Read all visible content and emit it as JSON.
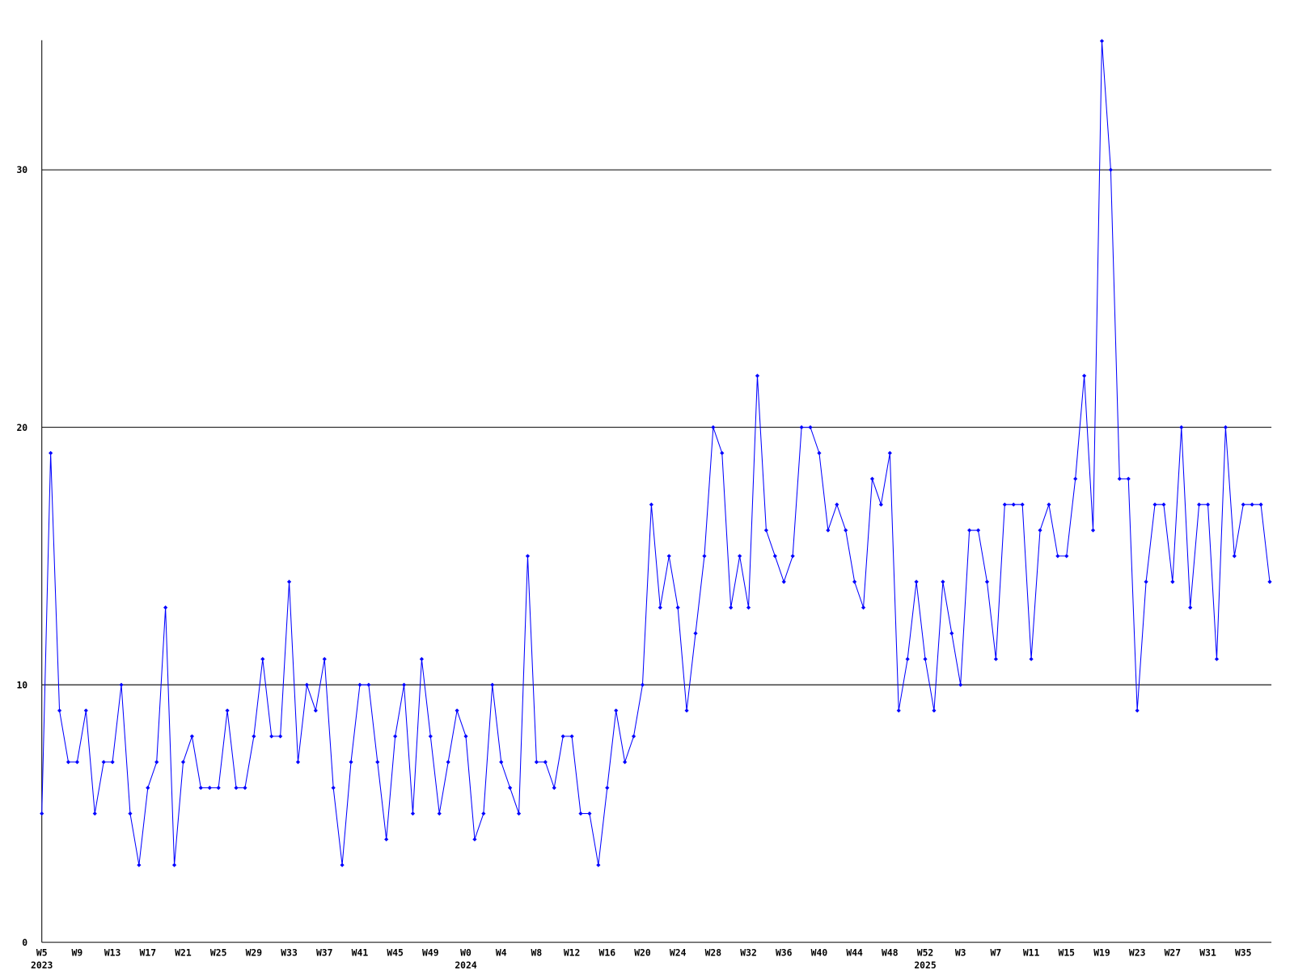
{
  "chart_data": {
    "type": "line",
    "categories": [
      "W5",
      null,
      null,
      null,
      "W9",
      null,
      null,
      null,
      "W13",
      null,
      null,
      null,
      "W17",
      null,
      null,
      null,
      "W21",
      null,
      null,
      null,
      "W25",
      null,
      null,
      null,
      "W29",
      null,
      null,
      null,
      "W33",
      null,
      null,
      null,
      "W37",
      null,
      null,
      null,
      "W41",
      null,
      null,
      null,
      "W45",
      null,
      null,
      null,
      "W49",
      null,
      null,
      null,
      "W0",
      null,
      null,
      null,
      "W4",
      null,
      null,
      null,
      "W8",
      null,
      null,
      null,
      "W12",
      null,
      null,
      null,
      "W16",
      null,
      null,
      null,
      "W20",
      null,
      null,
      null,
      "W24",
      null,
      null,
      null,
      "W28",
      null,
      null,
      null,
      "W32",
      null,
      null,
      null,
      "W36",
      null,
      null,
      null,
      "W40",
      null,
      null,
      null,
      "W44",
      null,
      null,
      null,
      "W48",
      null,
      null,
      null,
      "W52",
      null,
      null,
      null,
      "W3",
      null,
      null,
      null,
      "W7",
      null,
      null,
      null,
      "W11",
      null,
      null,
      null,
      "W15",
      null,
      null,
      null,
      "W19",
      null,
      null,
      null,
      "W23",
      null,
      null,
      null,
      "W27",
      null,
      null,
      null,
      "W31",
      null,
      null,
      null,
      "W35",
      null,
      null,
      null
    ],
    "year_labels": [
      "2023",
      null,
      null,
      null,
      null,
      null,
      null,
      null,
      null,
      null,
      null,
      null,
      null,
      null,
      null,
      null,
      null,
      null,
      null,
      null,
      null,
      null,
      null,
      null,
      null,
      null,
      null,
      null,
      null,
      null,
      null,
      null,
      null,
      null,
      null,
      null,
      null,
      null,
      null,
      null,
      null,
      null,
      null,
      null,
      null,
      null,
      null,
      null,
      "2024",
      null,
      null,
      null,
      null,
      null,
      null,
      null,
      null,
      null,
      null,
      null,
      null,
      null,
      null,
      null,
      null,
      null,
      null,
      null,
      null,
      null,
      null,
      null,
      null,
      null,
      null,
      null,
      null,
      null,
      null,
      null,
      null,
      null,
      null,
      null,
      null,
      null,
      null,
      null,
      null,
      null,
      null,
      null,
      null,
      null,
      null,
      null,
      null,
      null,
      null,
      null,
      "2025",
      null,
      null,
      null,
      null,
      null,
      null,
      null,
      null,
      null,
      null,
      null,
      null,
      null,
      null,
      null,
      null,
      null,
      null,
      null,
      null,
      null,
      null,
      null,
      null,
      null,
      null,
      null,
      null,
      null,
      null,
      null,
      null,
      null,
      null,
      null,
      null,
      null,
      null,
      null
    ],
    "series": [
      {
        "color": "#0000ff",
        "values": [
          5,
          19,
          9,
          7,
          7,
          9,
          5,
          7,
          7,
          10,
          5,
          3,
          6,
          7,
          13,
          3,
          7,
          8,
          6,
          6,
          6,
          9,
          6,
          6,
          8,
          11,
          8,
          8,
          14,
          7,
          10,
          9,
          11,
          6,
          3,
          7,
          10,
          10,
          7,
          4,
          8,
          10,
          5,
          11,
          8,
          5,
          7,
          9,
          8,
          4,
          5,
          10,
          7,
          6,
          5,
          15,
          7,
          7,
          6,
          8,
          8,
          5,
          5,
          3,
          6,
          9,
          7,
          8,
          10,
          17,
          13,
          15,
          13,
          9,
          12,
          15,
          20,
          19,
          13,
          15,
          13,
          22,
          16,
          15,
          14,
          15,
          20,
          20,
          19,
          16,
          17,
          16,
          14,
          13,
          18,
          17,
          19,
          9,
          11,
          14,
          11,
          9,
          14,
          12,
          10,
          16,
          16,
          14,
          11,
          17,
          17,
          17,
          11,
          16,
          17,
          15,
          15,
          18,
          22,
          16,
          35,
          30,
          18,
          18,
          9,
          14,
          17,
          17,
          14,
          20,
          13,
          17,
          17,
          11,
          20,
          15,
          17,
          17,
          17,
          14
        ]
      }
    ],
    "ylim": [
      0,
      35
    ],
    "yticks": [
      0,
      10,
      20,
      30
    ],
    "grid": true
  }
}
